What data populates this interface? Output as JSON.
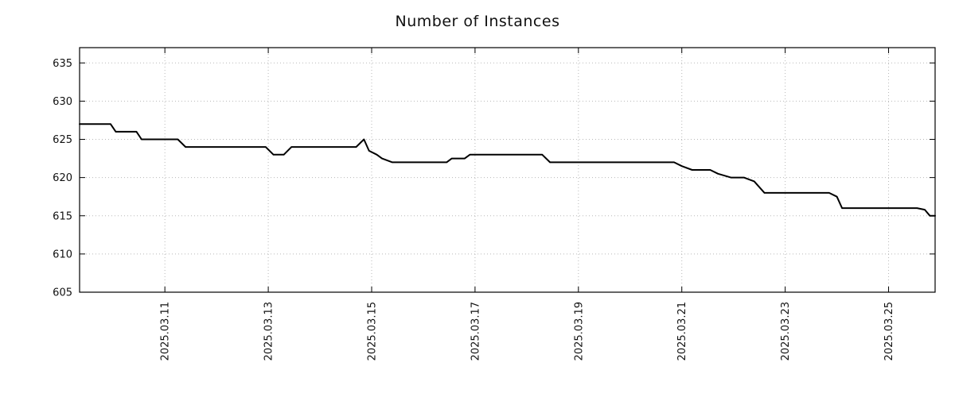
{
  "chart_data": {
    "type": "line",
    "title": "Number of Instances",
    "xlabel": "",
    "ylabel": "",
    "legend": "none",
    "grid": "dotted",
    "line_color": "#000000",
    "grid_color": "#b8b8b8",
    "axis_color": "#000000",
    "line_width": 2,
    "xlim": [
      9.35,
      25.9
    ],
    "ylim": [
      605,
      637
    ],
    "y_ticks": [
      605,
      610,
      615,
      620,
      625,
      630,
      635
    ],
    "x_ticks": [
      {
        "day": 11,
        "label": "2025.03.11"
      },
      {
        "day": 13,
        "label": "2025.03.13"
      },
      {
        "day": 15,
        "label": "2025.03.15"
      },
      {
        "day": 17,
        "label": "2025.03.17"
      },
      {
        "day": 19,
        "label": "2025.03.19"
      },
      {
        "day": 21,
        "label": "2025.03.21"
      },
      {
        "day": 23,
        "label": "2025.03.23"
      },
      {
        "day": 25,
        "label": "2025.03.25"
      }
    ],
    "points": [
      [
        9.35,
        627
      ],
      [
        9.95,
        627
      ],
      [
        10.05,
        626
      ],
      [
        10.45,
        626
      ],
      [
        10.55,
        625
      ],
      [
        11.25,
        625
      ],
      [
        11.4,
        624
      ],
      [
        12.95,
        624
      ],
      [
        13.1,
        623
      ],
      [
        13.3,
        623
      ],
      [
        13.45,
        624
      ],
      [
        14.7,
        624
      ],
      [
        14.85,
        625
      ],
      [
        14.95,
        623.5
      ],
      [
        15.1,
        623
      ],
      [
        15.2,
        622.5
      ],
      [
        15.4,
        622
      ],
      [
        16.45,
        622
      ],
      [
        16.55,
        622.5
      ],
      [
        16.8,
        622.5
      ],
      [
        16.9,
        623
      ],
      [
        18.3,
        623
      ],
      [
        18.45,
        622
      ],
      [
        20.85,
        622
      ],
      [
        21.0,
        621.5
      ],
      [
        21.2,
        621
      ],
      [
        21.55,
        621
      ],
      [
        21.7,
        620.5
      ],
      [
        21.95,
        620
      ],
      [
        22.2,
        620
      ],
      [
        22.4,
        619.5
      ],
      [
        22.6,
        618
      ],
      [
        23.85,
        618
      ],
      [
        24.0,
        617.5
      ],
      [
        24.1,
        616
      ],
      [
        25.55,
        616
      ],
      [
        25.7,
        615.8
      ],
      [
        25.8,
        615
      ],
      [
        25.9,
        615
      ]
    ]
  }
}
